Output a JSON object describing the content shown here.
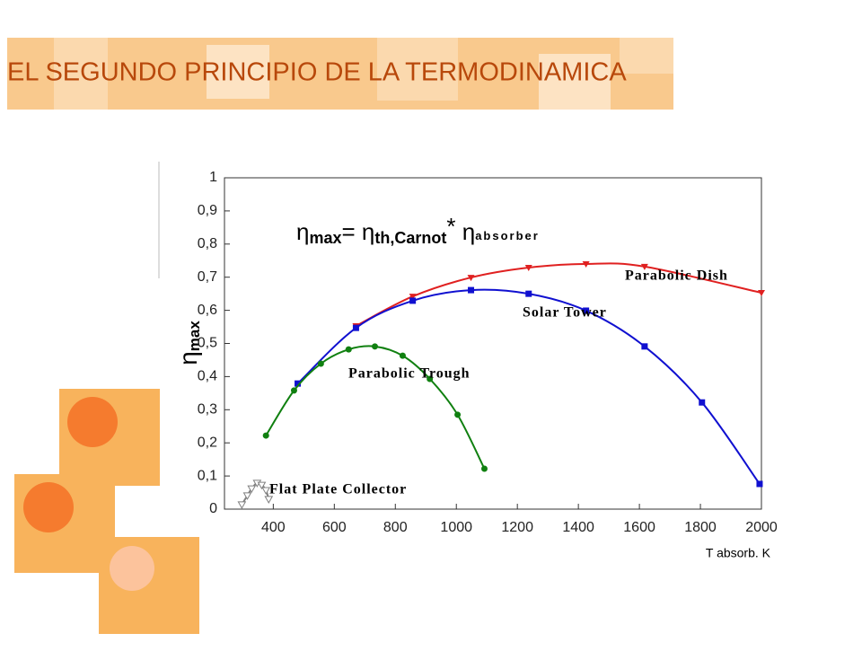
{
  "title": "EL SEGUNDO PRINCIPIO DE LA TERMODINAMICA",
  "chart_data": {
    "type": "line",
    "formula": [
      "η",
      "max",
      "= ",
      "η",
      "th,Carnot",
      "* ",
      "η",
      "absorber"
    ],
    "y_label": [
      "η",
      "max"
    ],
    "x_label": "T absorb. K",
    "xlim": [
      240,
      2000
    ],
    "xticks": [
      400,
      600,
      800,
      1000,
      1200,
      1400,
      1600,
      1800,
      2000
    ],
    "ylim": [
      0,
      1
    ],
    "yticks": [
      0,
      {
        "value": 0.1,
        "label": "0,1"
      },
      {
        "value": 0.2,
        "label": "0,2"
      },
      {
        "value": 0.3,
        "label": "0,3"
      },
      {
        "value": 0.4,
        "label": "0,4"
      },
      {
        "value": 0.5,
        "label": "0,5"
      },
      {
        "value": 0.6,
        "label": "0,6"
      },
      {
        "value": 0.7,
        "label": "0,7"
      },
      {
        "value": 0.8,
        "label": "0,8"
      },
      {
        "value": 0.9,
        "label": "0,9"
      },
      1
    ],
    "series": [
      {
        "name": "Parabolic Dish",
        "color": "#e02020",
        "marker": "triangle-down",
        "x": [
          671,
          857,
          1048,
          1237,
          1425,
          1617,
          2000
        ],
        "values": [
          0.553,
          0.642,
          0.699,
          0.729,
          0.74,
          0.732,
          0.653
        ]
      },
      {
        "name": "Solar Tower",
        "color": "#1010d0",
        "marker": "square",
        "x": [
          480,
          671,
          857,
          1048,
          1237,
          1425,
          1617,
          1805,
          1994
        ],
        "values": [
          0.379,
          0.547,
          0.629,
          0.661,
          0.65,
          0.599,
          0.491,
          0.322,
          0.076
        ]
      },
      {
        "name": "Parabolic Trough",
        "color": "#108010",
        "marker": "circle",
        "x": [
          376,
          468,
          556,
          647,
          733,
          824,
          913,
          1004,
          1092
        ],
        "values": [
          0.222,
          0.358,
          0.439,
          0.482,
          0.491,
          0.463,
          0.393,
          0.285,
          0.122
        ]
      },
      {
        "name": "Flat Plate Collector",
        "color": "#808080",
        "marker": "open-triangle",
        "x": [
          297,
          315,
          329,
          347,
          362,
          376,
          385
        ],
        "values": [
          0.014,
          0.041,
          0.062,
          0.079,
          0.073,
          0.057,
          0.03
        ]
      }
    ]
  }
}
